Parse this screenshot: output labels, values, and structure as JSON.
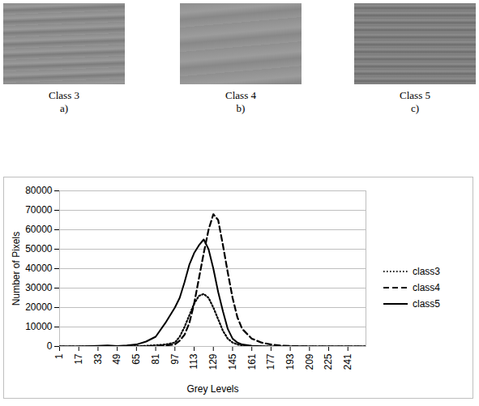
{
  "images": [
    {
      "caption": "Class 3",
      "letter": "a)"
    },
    {
      "caption": "Class 4",
      "letter": "b)"
    },
    {
      "caption": "Class 5",
      "letter": "c)"
    }
  ],
  "chart_data": {
    "type": "line",
    "x_label": "Grey Levels",
    "y_label": "Number of Pixels",
    "x": [
      1,
      17,
      33,
      41,
      49,
      57,
      65,
      73,
      81,
      89,
      97,
      101,
      105,
      109,
      113,
      117,
      121,
      125,
      129,
      133,
      137,
      141,
      145,
      149,
      153,
      161,
      169,
      177,
      185,
      193,
      209,
      225,
      241,
      256
    ],
    "series": [
      {
        "name": "class3",
        "color": "#000000",
        "line_style": "dotted",
        "values": [
          0,
          0,
          0,
          0,
          0,
          0,
          100,
          300,
          600,
          1000,
          2000,
          5000,
          10000,
          16000,
          22000,
          26000,
          27000,
          25000,
          20000,
          14000,
          8000,
          4000,
          2000,
          1000,
          500,
          200,
          0,
          0,
          0,
          0,
          0,
          0,
          0,
          0
        ]
      },
      {
        "name": "class4",
        "color": "#000000",
        "line_style": "dashed",
        "values": [
          0,
          0,
          0,
          0,
          0,
          0,
          0,
          100,
          200,
          500,
          1000,
          3000,
          6000,
          12000,
          22000,
          35000,
          48000,
          60000,
          68000,
          65000,
          52000,
          38000,
          25000,
          15000,
          9000,
          4000,
          2000,
          1000,
          500,
          200,
          0,
          0,
          0,
          0
        ]
      },
      {
        "name": "class5",
        "color": "#000000",
        "line_style": "solid",
        "values": [
          0,
          0,
          300,
          500,
          200,
          500,
          1000,
          2500,
          5000,
          12000,
          20000,
          25000,
          33000,
          42000,
          48000,
          52000,
          55000,
          50000,
          40000,
          28000,
          18000,
          9000,
          4000,
          2000,
          1000,
          300,
          100,
          0,
          0,
          0,
          0,
          0,
          0,
          0
        ]
      }
    ],
    "xlim": [
      1,
      256
    ],
    "xticks": [
      1,
      17,
      33,
      49,
      65,
      81,
      97,
      113,
      129,
      145,
      161,
      177,
      193,
      209,
      225,
      241
    ],
    "ylim": [
      0,
      80000
    ],
    "yticks": [
      0,
      10000,
      20000,
      30000,
      40000,
      50000,
      60000,
      70000,
      80000
    ],
    "grid": true,
    "legend": "right"
  }
}
